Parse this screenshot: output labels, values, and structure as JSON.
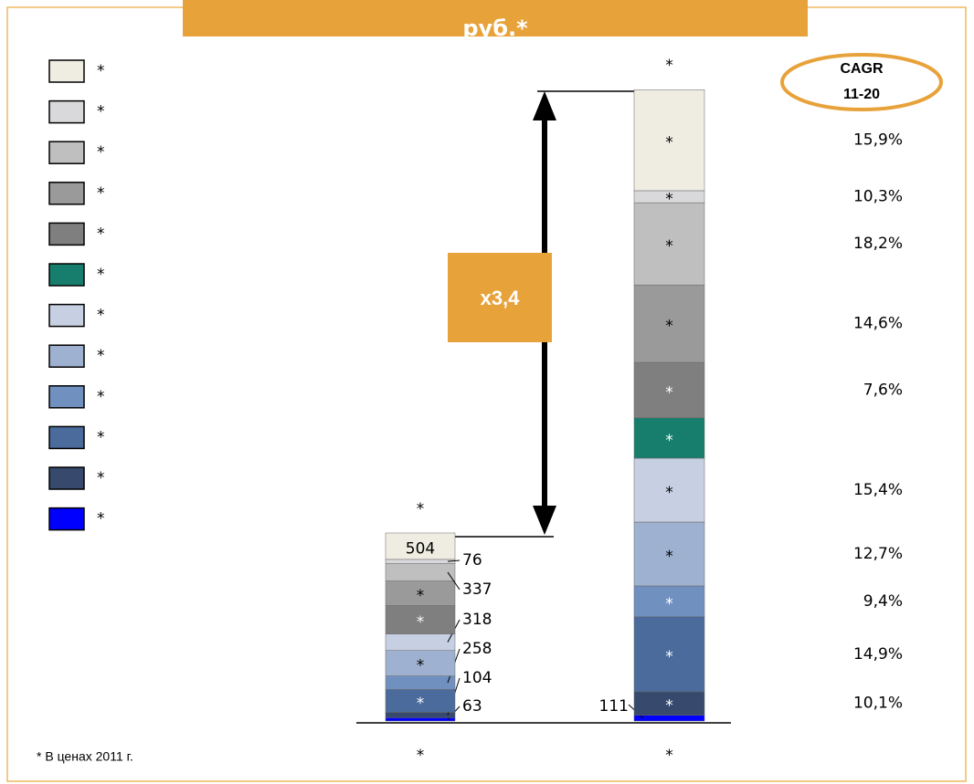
{
  "chart_data": {
    "type": "stacked_bar",
    "title": "руб.*",
    "categories": [
      "*",
      "*"
    ],
    "total_labels": [
      "*",
      "*"
    ],
    "ylim": [
      0,
      12100
    ],
    "multiplier_label": "x3,4",
    "cagr_header": [
      "CAGR",
      "11-20"
    ],
    "footnote": "* В ценах 2011 г.",
    "series": [
      {
        "name": "*",
        "color": "#0000ff",
        "values": [
          63,
          111
        ],
        "value_labels": [
          "63",
          "111"
        ],
        "cagr": null
      },
      {
        "name": "*",
        "color": "#374a6e",
        "values": [
          104,
          450
        ],
        "value_labels": [
          "104",
          "*"
        ],
        "cagr": "10,1%"
      },
      {
        "name": "*",
        "color": "#4a6b9c",
        "values": [
          435,
          1430
        ],
        "value_labels": [
          "*",
          "*"
        ],
        "cagr": "14,9%"
      },
      {
        "name": "*",
        "color": "#7091c0",
        "values": [
          258,
          590
        ],
        "value_labels": [
          "258",
          "*"
        ],
        "cagr": "9,4%"
      },
      {
        "name": "*",
        "color": "#9fb1d0",
        "values": [
          487,
          1220
        ],
        "value_labels": [
          "*",
          "*"
        ],
        "cagr": "12,7%"
      },
      {
        "name": "*",
        "color": "#c6d0e2",
        "values": [
          318,
          1220
        ],
        "value_labels": [
          "318",
          "*"
        ],
        "cagr": "15,4%"
      },
      {
        "name": "*",
        "color": "#177e6d",
        "values": [
          0,
          770
        ],
        "value_labels": [
          null,
          "*"
        ],
        "cagr": null
      },
      {
        "name": "*",
        "color": "#7f7f7f",
        "values": [
          540,
          1060
        ],
        "value_labels": [
          "*",
          "*"
        ],
        "cagr": "7,6%"
      },
      {
        "name": "*",
        "color": "#9a9a9a",
        "values": [
          470,
          1480
        ],
        "value_labels": [
          "*",
          "*"
        ],
        "cagr": "14,6%"
      },
      {
        "name": "*",
        "color": "#bfbfbf",
        "values": [
          337,
          1570
        ],
        "value_labels": [
          "337",
          "*"
        ],
        "cagr": "18,2%"
      },
      {
        "name": "*",
        "color": "#d9d9dc",
        "values": [
          76,
          230
        ],
        "value_labels": [
          "76",
          "*"
        ],
        "cagr": "10,3%"
      },
      {
        "name": "*",
        "color": "#efede2",
        "values": [
          504,
          1930
        ],
        "value_labels": [
          "504",
          "*"
        ],
        "cagr": "15,9%"
      }
    ]
  }
}
